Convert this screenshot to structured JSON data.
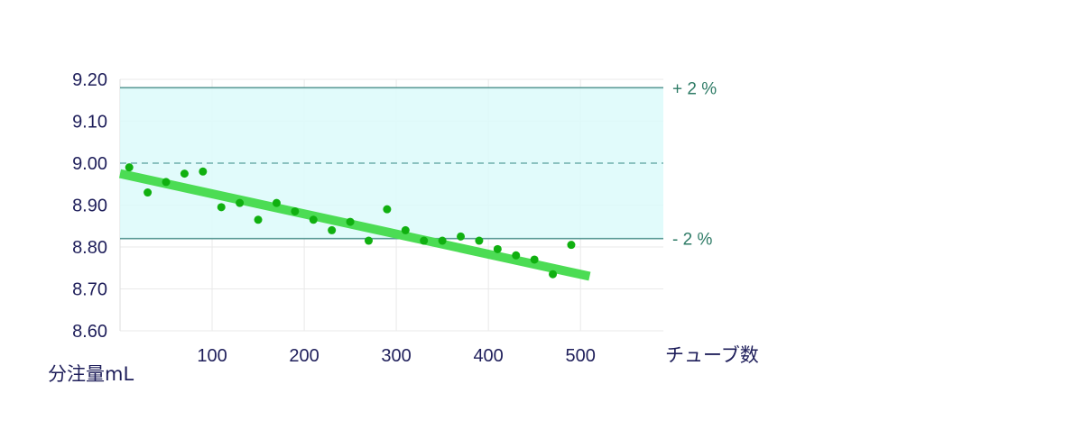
{
  "chart_data": {
    "type": "scatter",
    "xlabel": "チューブ数",
    "ylabel": "分注量mL",
    "xlim": [
      0,
      590
    ],
    "ylim": [
      8.6,
      9.2
    ],
    "x_ticks": [
      100,
      200,
      300,
      400,
      500
    ],
    "y_ticks": [
      "8.60",
      "8.70",
      "8.80",
      "8.90",
      "9.00",
      "9.10",
      "9.20"
    ],
    "grid": true,
    "tolerance_band": {
      "upper": 9.18,
      "lower": 8.82,
      "center": 9.0,
      "upper_label": "+ 2 %",
      "lower_label": "- 2 %",
      "fill_color": "#dcfafa",
      "line_color": "#5c9c98"
    },
    "trend_line": {
      "x": [
        0,
        510
      ],
      "y": [
        8.975,
        8.73
      ],
      "color": "#4cdc54"
    },
    "series": [
      {
        "color": "#10b010",
        "points": [
          [
            10,
            8.99
          ],
          [
            30,
            8.93
          ],
          [
            50,
            8.955
          ],
          [
            70,
            8.975
          ],
          [
            90,
            8.98
          ],
          [
            110,
            8.895
          ],
          [
            130,
            8.905
          ],
          [
            150,
            8.865
          ],
          [
            170,
            8.905
          ],
          [
            190,
            8.885
          ],
          [
            210,
            8.865
          ],
          [
            230,
            8.84
          ],
          [
            250,
            8.86
          ],
          [
            270,
            8.815
          ],
          [
            290,
            8.89
          ],
          [
            310,
            8.84
          ],
          [
            330,
            8.815
          ],
          [
            350,
            8.815
          ],
          [
            370,
            8.825
          ],
          [
            390,
            8.815
          ],
          [
            410,
            8.795
          ],
          [
            430,
            8.78
          ],
          [
            450,
            8.77
          ],
          [
            470,
            8.735
          ],
          [
            490,
            8.805
          ]
        ]
      }
    ]
  }
}
